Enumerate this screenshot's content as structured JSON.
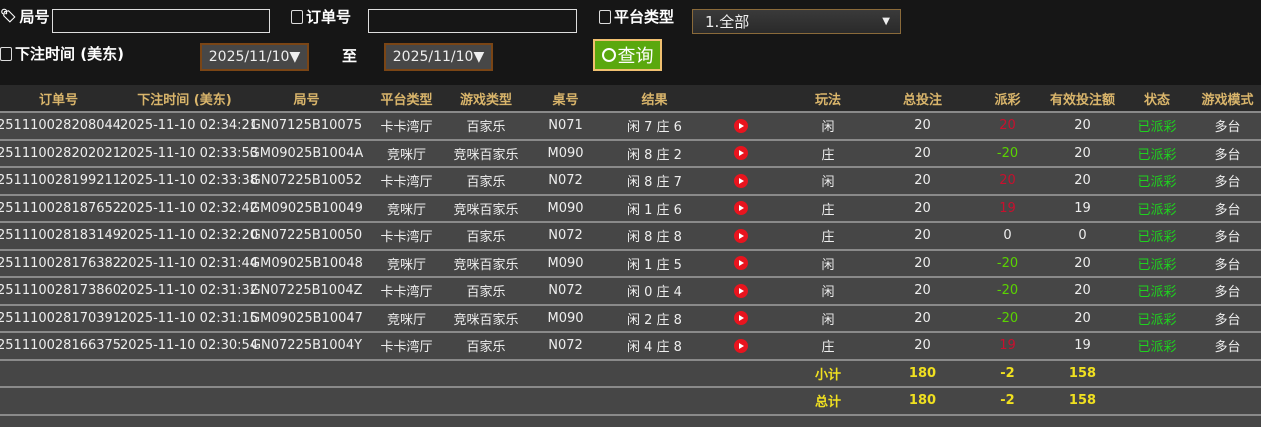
{
  "filters": {
    "round_label": "局号",
    "round_value": "",
    "order_label": "订单号",
    "order_value": "",
    "platform_label": "平台类型",
    "platform_value": "1.全部",
    "time_label": "下注时间 (美东)",
    "date_from": "2025/11/10▼",
    "to_label": "至",
    "date_to": "2025/11/10▼",
    "search_label": "查询"
  },
  "table": {
    "headers": [
      "订单号",
      "下注时间 (美东)",
      "局号",
      "平台类型",
      "游戏类型",
      "桌号",
      "结果",
      "",
      "玩法",
      "总投注",
      "派彩",
      "有效投注额",
      "状态",
      "游戏模式"
    ],
    "rows": [
      {
        "order": "251110028208044",
        "time": "2025-11-10 02:34:21",
        "round": "GN07125B10075",
        "platform": "卡卡湾厅",
        "game": "百家乐",
        "table": "N071",
        "result": "闲 7 庄 6",
        "play": "闲",
        "bet": "20",
        "payout": "20",
        "valid": "20",
        "status": "已派彩",
        "mode": "多台"
      },
      {
        "order": "251110028202021",
        "time": "2025-11-10 02:33:53",
        "round": "GM09025B1004A",
        "platform": "竞咪厅",
        "game": "竞咪百家乐",
        "table": "M090",
        "result": "闲 8 庄 2",
        "play": "庄",
        "bet": "20",
        "payout": "-20",
        "valid": "20",
        "status": "已派彩",
        "mode": "多台"
      },
      {
        "order": "251110028199211",
        "time": "2025-11-10 02:33:38",
        "round": "GN07225B10052",
        "platform": "卡卡湾厅",
        "game": "百家乐",
        "table": "N072",
        "result": "闲 8 庄 7",
        "play": "闲",
        "bet": "20",
        "payout": "20",
        "valid": "20",
        "status": "已派彩",
        "mode": "多台"
      },
      {
        "order": "251110028187652",
        "time": "2025-11-10 02:32:42",
        "round": "GM09025B10049",
        "platform": "竞咪厅",
        "game": "竞咪百家乐",
        "table": "M090",
        "result": "闲 1 庄 6",
        "play": "庄",
        "bet": "20",
        "payout": "19",
        "valid": "19",
        "status": "已派彩",
        "mode": "多台"
      },
      {
        "order": "251110028183149",
        "time": "2025-11-10 02:32:20",
        "round": "GN07225B10050",
        "platform": "卡卡湾厅",
        "game": "百家乐",
        "table": "N072",
        "result": "闲 8 庄 8",
        "play": "庄",
        "bet": "20",
        "payout": "0",
        "valid": "0",
        "status": "已派彩",
        "mode": "多台"
      },
      {
        "order": "251110028176382",
        "time": "2025-11-10 02:31:44",
        "round": "GM09025B10048",
        "platform": "竞咪厅",
        "game": "竞咪百家乐",
        "table": "M090",
        "result": "闲 1 庄 5",
        "play": "闲",
        "bet": "20",
        "payout": "-20",
        "valid": "20",
        "status": "已派彩",
        "mode": "多台"
      },
      {
        "order": "251110028173860",
        "time": "2025-11-10 02:31:32",
        "round": "GN07225B1004Z",
        "platform": "卡卡湾厅",
        "game": "百家乐",
        "table": "N072",
        "result": "闲 0 庄 4",
        "play": "闲",
        "bet": "20",
        "payout": "-20",
        "valid": "20",
        "status": "已派彩",
        "mode": "多台"
      },
      {
        "order": "251110028170391",
        "time": "2025-11-10 02:31:15",
        "round": "GM09025B10047",
        "platform": "竞咪厅",
        "game": "竞咪百家乐",
        "table": "M090",
        "result": "闲 2 庄 8",
        "play": "闲",
        "bet": "20",
        "payout": "-20",
        "valid": "20",
        "status": "已派彩",
        "mode": "多台"
      },
      {
        "order": "251110028166375",
        "time": "2025-11-10 02:30:54",
        "round": "GN07225B1004Y",
        "platform": "卡卡湾厅",
        "game": "百家乐",
        "table": "N072",
        "result": "闲 4 庄 8",
        "play": "庄",
        "bet": "20",
        "payout": "19",
        "valid": "19",
        "status": "已派彩",
        "mode": "多台"
      }
    ],
    "subtotal": {
      "label": "小计",
      "bet": "180",
      "payout": "-2",
      "valid": "158"
    },
    "total": {
      "label": "总计",
      "bet": "180",
      "payout": "-2",
      "valid": "158"
    }
  },
  "colors": {
    "header_text": "#d9b56b",
    "payout_positive": "#c8102e",
    "payout_negative": "#5ad400",
    "status": "#1ed21e",
    "summary": "#f0e020",
    "search_button": "#5aa80e"
  }
}
